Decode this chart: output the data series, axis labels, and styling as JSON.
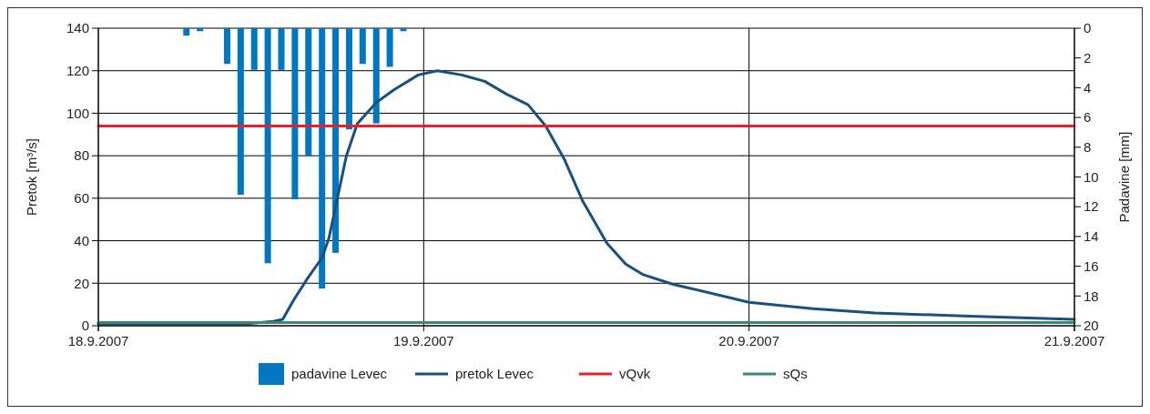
{
  "chart_data": {
    "type": "line",
    "ylabel": "Pretok [m³/s]",
    "y2label": "Padavine [mm]",
    "xlim": [
      "2007-09-18T00:00",
      "2007-09-21T00:00"
    ],
    "xticks": [
      {
        "value": "2007-09-18T00:00",
        "label": "18.9.2007"
      },
      {
        "value": "2007-09-19T00:00",
        "label": "19.9.2007"
      },
      {
        "value": "2007-09-20T00:00",
        "label": "20.9.2007"
      },
      {
        "value": "2007-09-21T00:00",
        "label": "21.9.2007"
      }
    ],
    "ylim": [
      0,
      140
    ],
    "yticks": [
      0,
      20,
      40,
      60,
      80,
      100,
      120,
      140
    ],
    "y2lim": [
      20,
      0
    ],
    "y2ticks": [
      0,
      2,
      4,
      6,
      8,
      10,
      12,
      14,
      16,
      18,
      20
    ],
    "grid": true,
    "legend": "bottom",
    "series": [
      {
        "name": "padavine Levec",
        "type": "bar",
        "axis": "y2",
        "color": "#0077c0",
        "x": [
          "2007-09-18T06:30",
          "2007-09-18T07:30",
          "2007-09-18T09:30",
          "2007-09-18T10:30",
          "2007-09-18T11:30",
          "2007-09-18T12:30",
          "2007-09-18T13:30",
          "2007-09-18T14:30",
          "2007-09-18T15:30",
          "2007-09-18T16:30",
          "2007-09-18T17:30",
          "2007-09-18T18:30",
          "2007-09-18T19:30",
          "2007-09-18T20:30",
          "2007-09-18T21:30",
          "2007-09-18T22:30"
        ],
        "values": [
          0.5,
          0.2,
          2.4,
          11.2,
          2.8,
          15.8,
          2.8,
          11.5,
          8.6,
          17.5,
          15.1,
          6.8,
          2.4,
          6.4,
          2.6,
          0.2
        ]
      },
      {
        "name": "pretok Levec",
        "color": "#1b4f7c",
        "x": [
          "2007-09-18T00:00",
          "2007-09-18T11:00",
          "2007-09-18T12:54",
          "2007-09-18T13:36",
          "2007-09-18T14:24",
          "2007-09-18T15:24",
          "2007-09-18T16:30",
          "2007-09-18T17:00",
          "2007-09-18T17:36",
          "2007-09-18T18:18",
          "2007-09-18T19:06",
          "2007-09-18T20:30",
          "2007-09-18T21:48",
          "2007-09-18T23:36",
          "2007-09-19T01:00",
          "2007-09-19T02:48",
          "2007-09-19T04:30",
          "2007-09-19T06:06",
          "2007-09-19T07:42",
          "2007-09-19T09:00",
          "2007-09-19T10:24",
          "2007-09-19T11:42",
          "2007-09-19T13:30",
          "2007-09-19T14:54",
          "2007-09-19T16:12",
          "2007-09-19T18:24",
          "2007-09-19T19:24",
          "2007-09-20T00:00",
          "2007-09-20T04:42",
          "2007-09-20T09:18",
          "2007-09-20T16:18",
          "2007-09-21T00:00"
        ],
        "values": [
          1,
          1,
          2,
          3,
          12,
          22,
          32,
          41,
          59,
          80,
          95,
          105,
          111,
          118,
          120,
          118,
          115,
          109,
          104,
          94,
          78,
          59,
          39,
          29,
          24,
          19.5,
          18,
          11,
          8,
          6,
          4.5,
          3
        ]
      },
      {
        "name": "vQvk",
        "color": "#e8202a",
        "x": [
          "2007-09-18T00:00",
          "2007-09-21T00:00"
        ],
        "values": [
          94,
          94
        ]
      },
      {
        "name": "sQs",
        "color": "#3a8a72",
        "x": [
          "2007-09-18T00:00",
          "2007-09-21T00:00"
        ],
        "values": [
          1.5,
          1.5
        ]
      }
    ]
  }
}
